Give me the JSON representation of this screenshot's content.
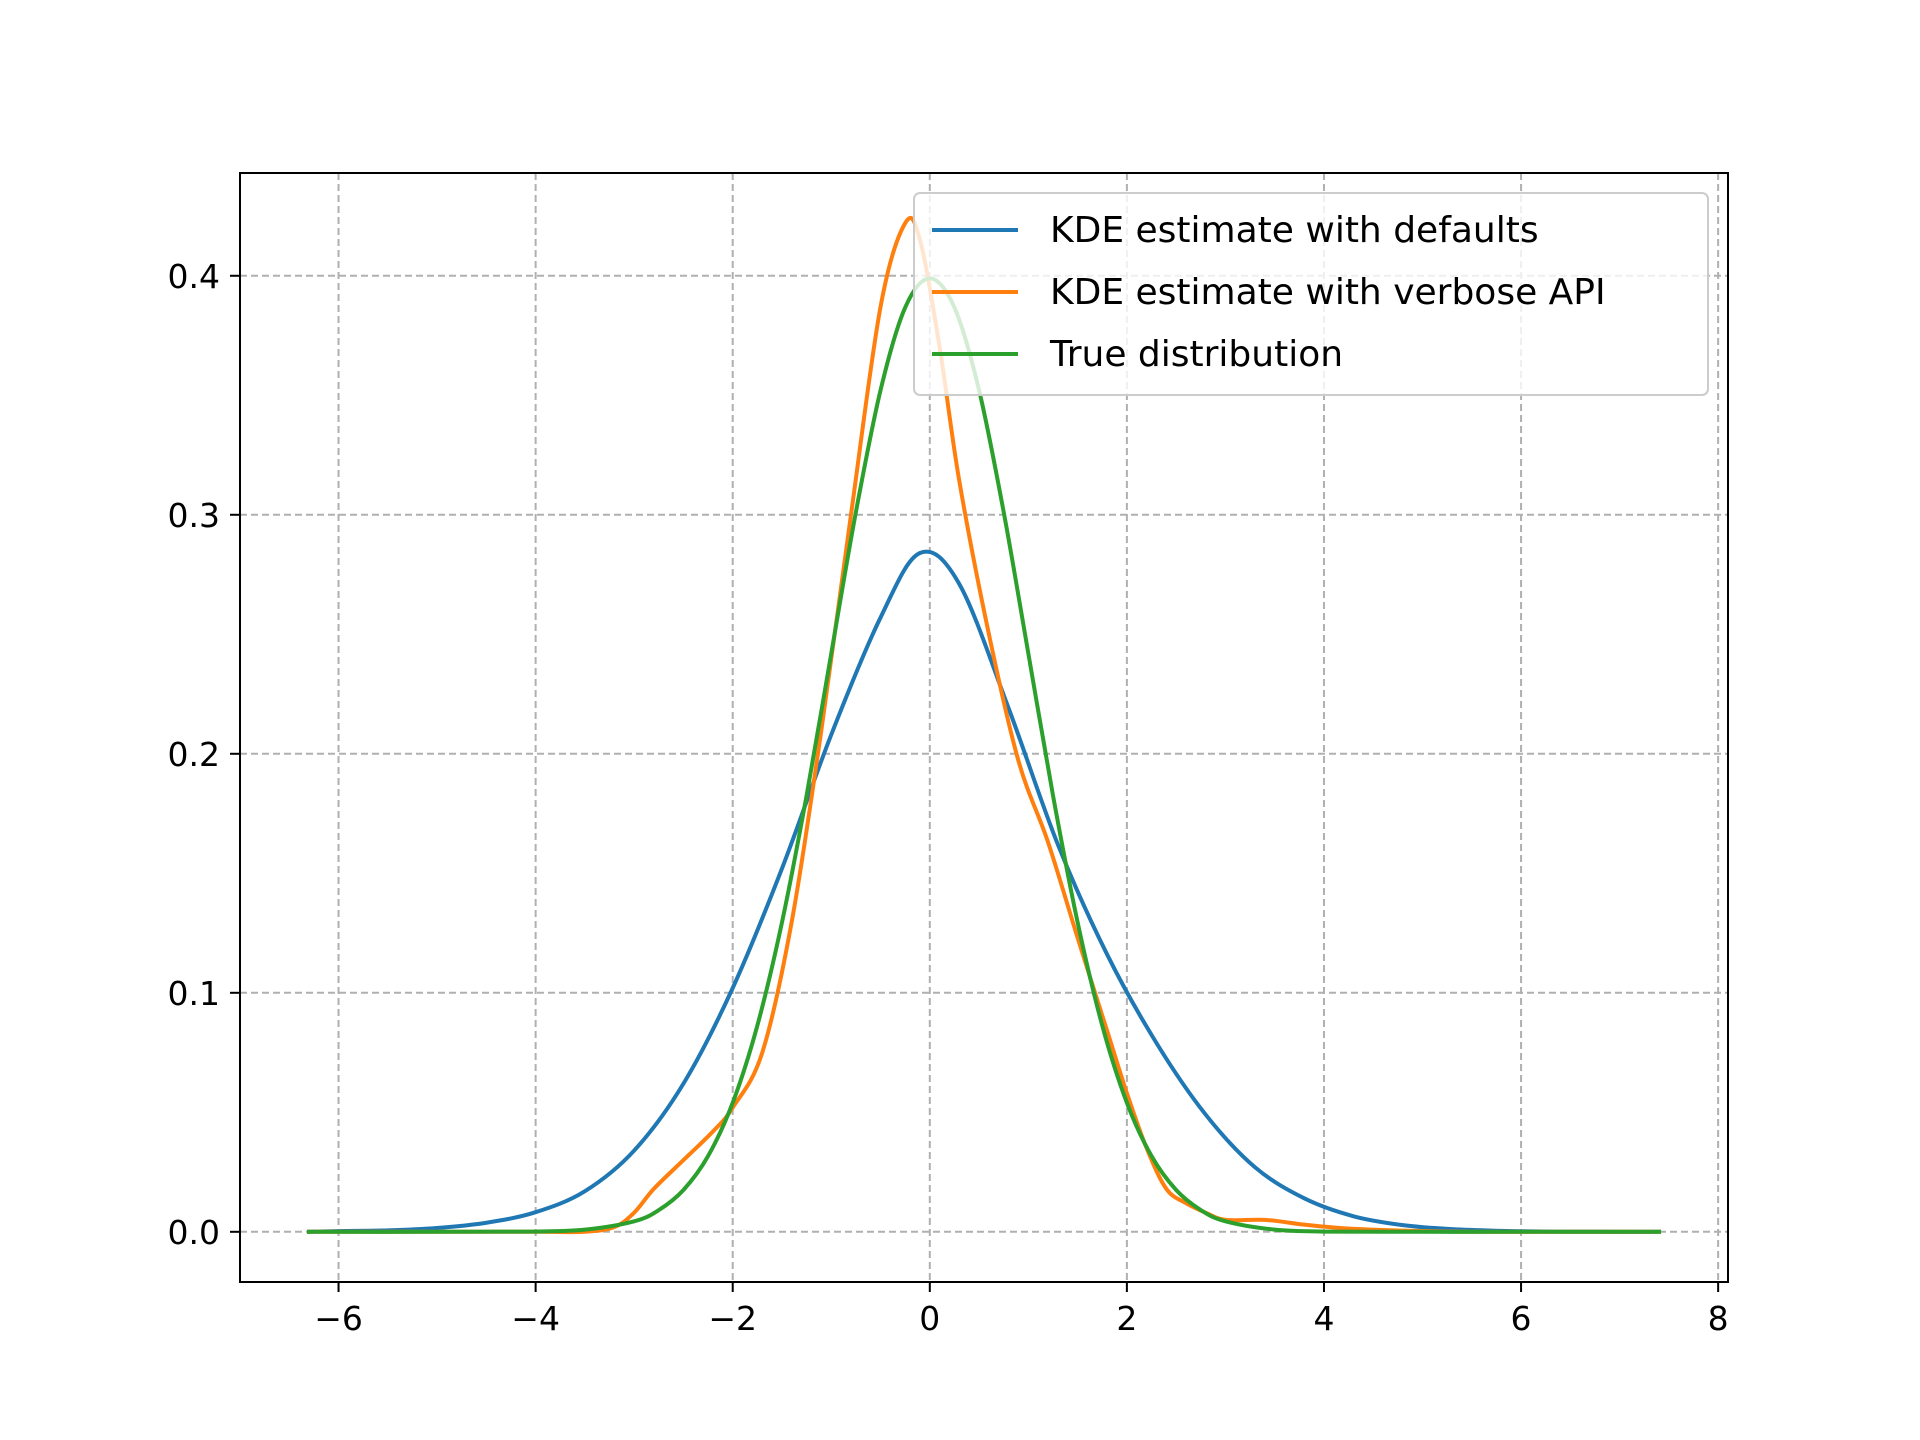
{
  "chart_data": {
    "type": "line",
    "title": "",
    "xlabel": "",
    "ylabel": "",
    "xlim": [
      -7,
      8.1
    ],
    "ylim": [
      -0.021,
      0.443
    ],
    "xticks": [
      -6,
      -4,
      -2,
      0,
      2,
      4,
      6,
      8
    ],
    "xtick_labels": [
      "−6",
      "−4",
      "−2",
      "0",
      "2",
      "4",
      "6",
      "8"
    ],
    "yticks": [
      0.0,
      0.1,
      0.2,
      0.3,
      0.4
    ],
    "ytick_labels": [
      "0.0",
      "0.1",
      "0.2",
      "0.3",
      "0.4"
    ],
    "grid": true,
    "legend_position": "upper-right",
    "series": [
      {
        "name": "KDE estimate with defaults",
        "color": "#1f77b4",
        "x": [
          -6.3,
          -6.0,
          -5.5,
          -5.0,
          -4.5,
          -4.0,
          -3.5,
          -3.0,
          -2.5,
          -2.0,
          -1.5,
          -1.0,
          -0.5,
          -0.1,
          0.3,
          0.8,
          1.3,
          1.8,
          2.3,
          2.8,
          3.3,
          3.8,
          4.3,
          4.8,
          5.3,
          5.8,
          6.3,
          6.8,
          7.4
        ],
        "y": [
          0.0,
          0.0003,
          0.0006,
          0.0016,
          0.0038,
          0.0082,
          0.017,
          0.034,
          0.062,
          0.102,
          0.152,
          0.208,
          0.257,
          0.284,
          0.271,
          0.219,
          0.162,
          0.116,
          0.079,
          0.049,
          0.027,
          0.014,
          0.0065,
          0.0028,
          0.0011,
          0.0004,
          0.0001,
          0.0,
          0.0
        ]
      },
      {
        "name": "KDE estimate with verbose API",
        "color": "#ff7f0e",
        "x": [
          -6.3,
          -5.0,
          -4.0,
          -3.5,
          -3.2,
          -3.0,
          -2.8,
          -2.5,
          -2.2,
          -2.0,
          -1.7,
          -1.4,
          -1.1,
          -0.8,
          -0.5,
          -0.25,
          -0.1,
          0.1,
          0.3,
          0.6,
          0.9,
          1.2,
          1.5,
          1.8,
          2.0,
          2.2,
          2.4,
          2.6,
          2.8,
          3.0,
          3.4,
          3.8,
          4.2,
          4.8,
          5.5,
          6.5,
          7.4
        ],
        "y": [
          0.0,
          0.0,
          0.0,
          0.0,
          0.002,
          0.008,
          0.018,
          0.03,
          0.042,
          0.052,
          0.075,
          0.13,
          0.21,
          0.3,
          0.387,
          0.422,
          0.415,
          0.37,
          0.314,
          0.25,
          0.197,
          0.163,
          0.123,
          0.084,
          0.058,
          0.035,
          0.018,
          0.012,
          0.008,
          0.005,
          0.005,
          0.003,
          0.0015,
          0.0005,
          0.0,
          0.0,
          0.0
        ]
      },
      {
        "name": "True distribution",
        "color": "#2ca02c",
        "x": [
          -6.3,
          -5.0,
          -4.0,
          -3.5,
          -3.0,
          -2.75,
          -2.5,
          -2.25,
          -2.0,
          -1.75,
          -1.5,
          -1.25,
          -1.0,
          -0.75,
          -0.5,
          -0.25,
          0.0,
          0.25,
          0.5,
          0.75,
          1.0,
          1.25,
          1.5,
          1.75,
          2.0,
          2.25,
          2.5,
          2.75,
          3.0,
          3.5,
          4.0,
          5.0,
          6.0,
          7.4
        ],
        "y": [
          0.0,
          0.0,
          0.0001,
          0.0009,
          0.0044,
          0.0091,
          0.0175,
          0.0317,
          0.054,
          0.0863,
          0.1295,
          0.1826,
          0.242,
          0.3011,
          0.3521,
          0.3867,
          0.3989,
          0.3867,
          0.3521,
          0.3011,
          0.242,
          0.1826,
          0.1295,
          0.0863,
          0.054,
          0.0317,
          0.0175,
          0.0091,
          0.0044,
          0.0009,
          0.0001,
          0.0,
          0.0,
          0.0
        ]
      }
    ]
  }
}
